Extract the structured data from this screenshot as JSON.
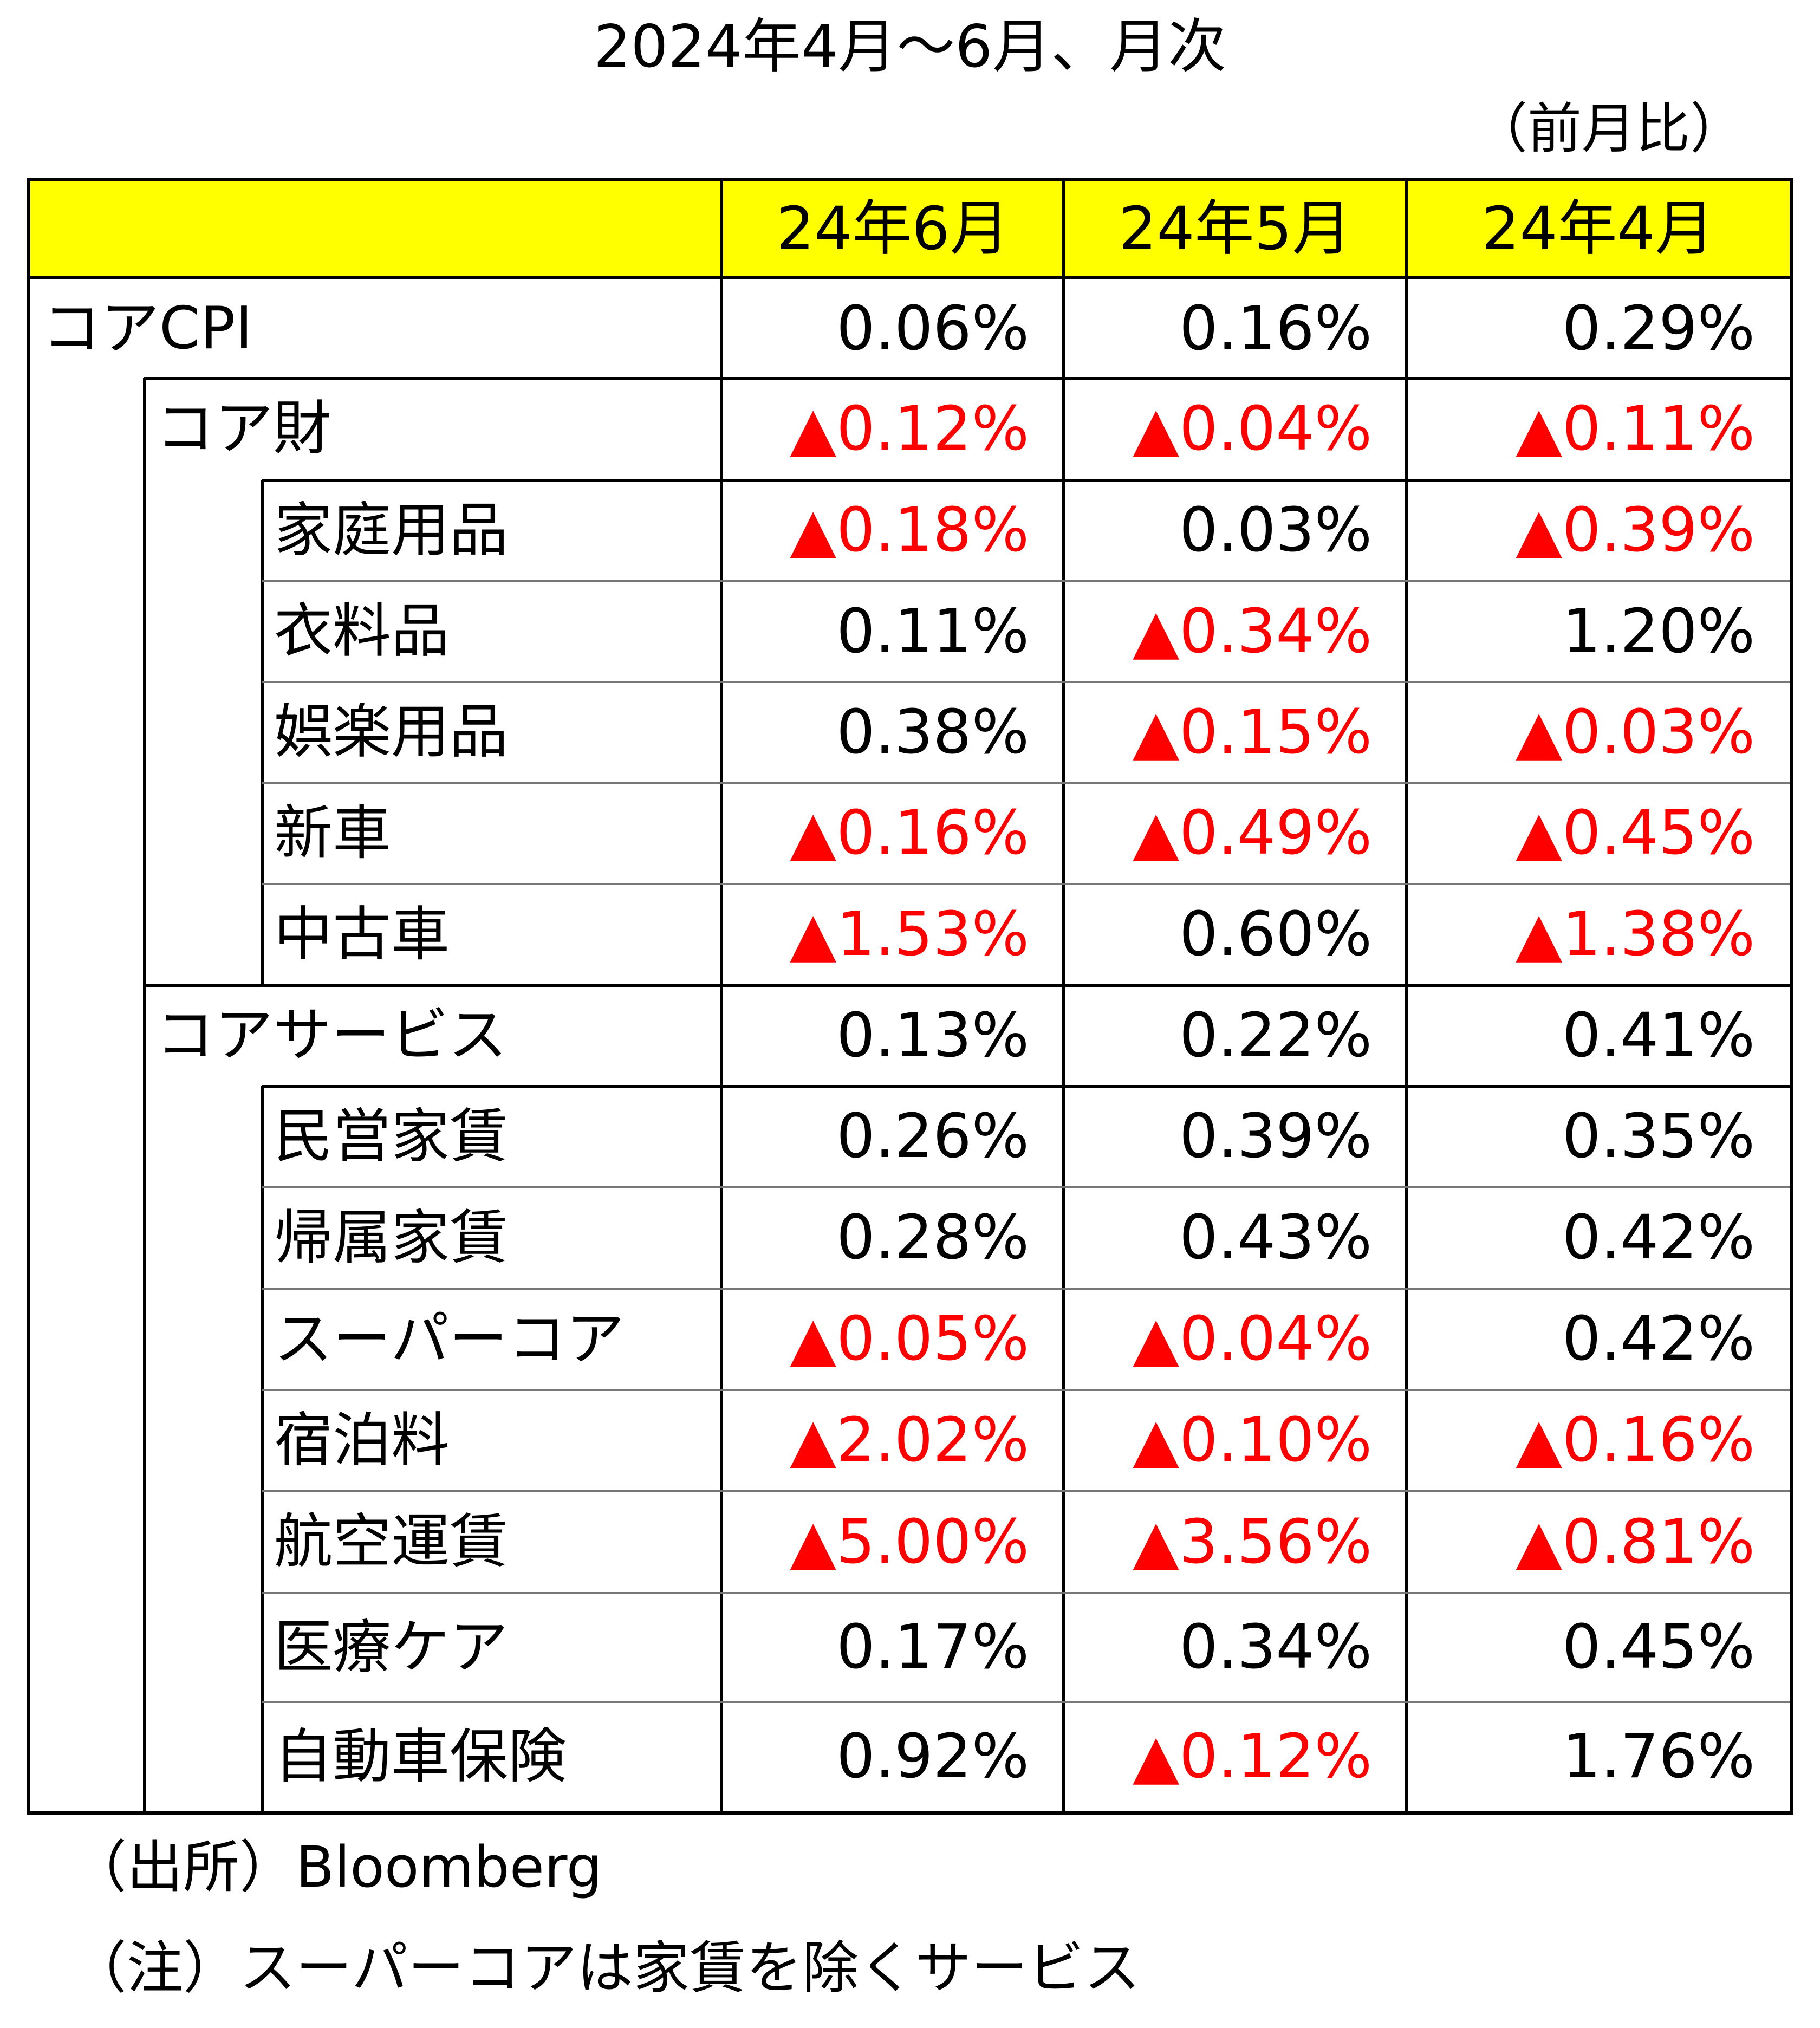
{
  "title": "2024年4月～6月、月次",
  "unit": "（前月比）",
  "chart_data": {
    "type": "table",
    "columns": [
      "24年6月",
      "24年5月",
      "24年4月"
    ],
    "rows": [
      {
        "label": "コアCPI",
        "level": 0,
        "values": [
          "0.06%",
          "0.16%",
          "0.29%"
        ]
      },
      {
        "label": "コア財",
        "level": 1,
        "values": [
          "▲0.12%",
          "▲0.04%",
          "▲0.11%"
        ]
      },
      {
        "label": "家庭用品",
        "level": 2,
        "values": [
          "▲0.18%",
          "0.03%",
          "▲0.39%"
        ]
      },
      {
        "label": "衣料品",
        "level": 2,
        "values": [
          "0.11%",
          "▲0.34%",
          "1.20%"
        ]
      },
      {
        "label": "娯楽用品",
        "level": 2,
        "values": [
          "0.38%",
          "▲0.15%",
          "▲0.03%"
        ]
      },
      {
        "label": "新車",
        "level": 2,
        "values": [
          "▲0.16%",
          "▲0.49%",
          "▲0.45%"
        ]
      },
      {
        "label": "中古車",
        "level": 2,
        "values": [
          "▲1.53%",
          "0.60%",
          "▲1.38%"
        ]
      },
      {
        "label": "コアサービス",
        "level": 1,
        "values": [
          "0.13%",
          "0.22%",
          "0.41%"
        ]
      },
      {
        "label": "民営家賃",
        "level": 2,
        "values": [
          "0.26%",
          "0.39%",
          "0.35%"
        ]
      },
      {
        "label": "帰属家賃",
        "level": 2,
        "values": [
          "0.28%",
          "0.43%",
          "0.42%"
        ]
      },
      {
        "label": "スーパーコア",
        "level": 2,
        "values": [
          "▲0.05%",
          "▲0.04%",
          "0.42%"
        ]
      },
      {
        "label": "宿泊料",
        "level": 2,
        "values": [
          "▲2.02%",
          "▲0.10%",
          "▲0.16%"
        ]
      },
      {
        "label": "航空運賃",
        "level": 2,
        "values": [
          "▲5.00%",
          "▲3.56%",
          "▲0.81%"
        ]
      },
      {
        "label": "医療ケア",
        "level": 2,
        "values": [
          "0.17%",
          "0.34%",
          "0.45%"
        ]
      },
      {
        "label": "自動車保険",
        "level": 2,
        "values": [
          "0.92%",
          "▲0.12%",
          "1.76%"
        ]
      }
    ]
  },
  "colors": {
    "header_bg": "#ffff00",
    "negative": "#ff0000",
    "text": "#000000"
  },
  "notes": {
    "source": "（出所）Bloomberg",
    "note": "（注）スーパーコアは家賃を除くサービス"
  }
}
